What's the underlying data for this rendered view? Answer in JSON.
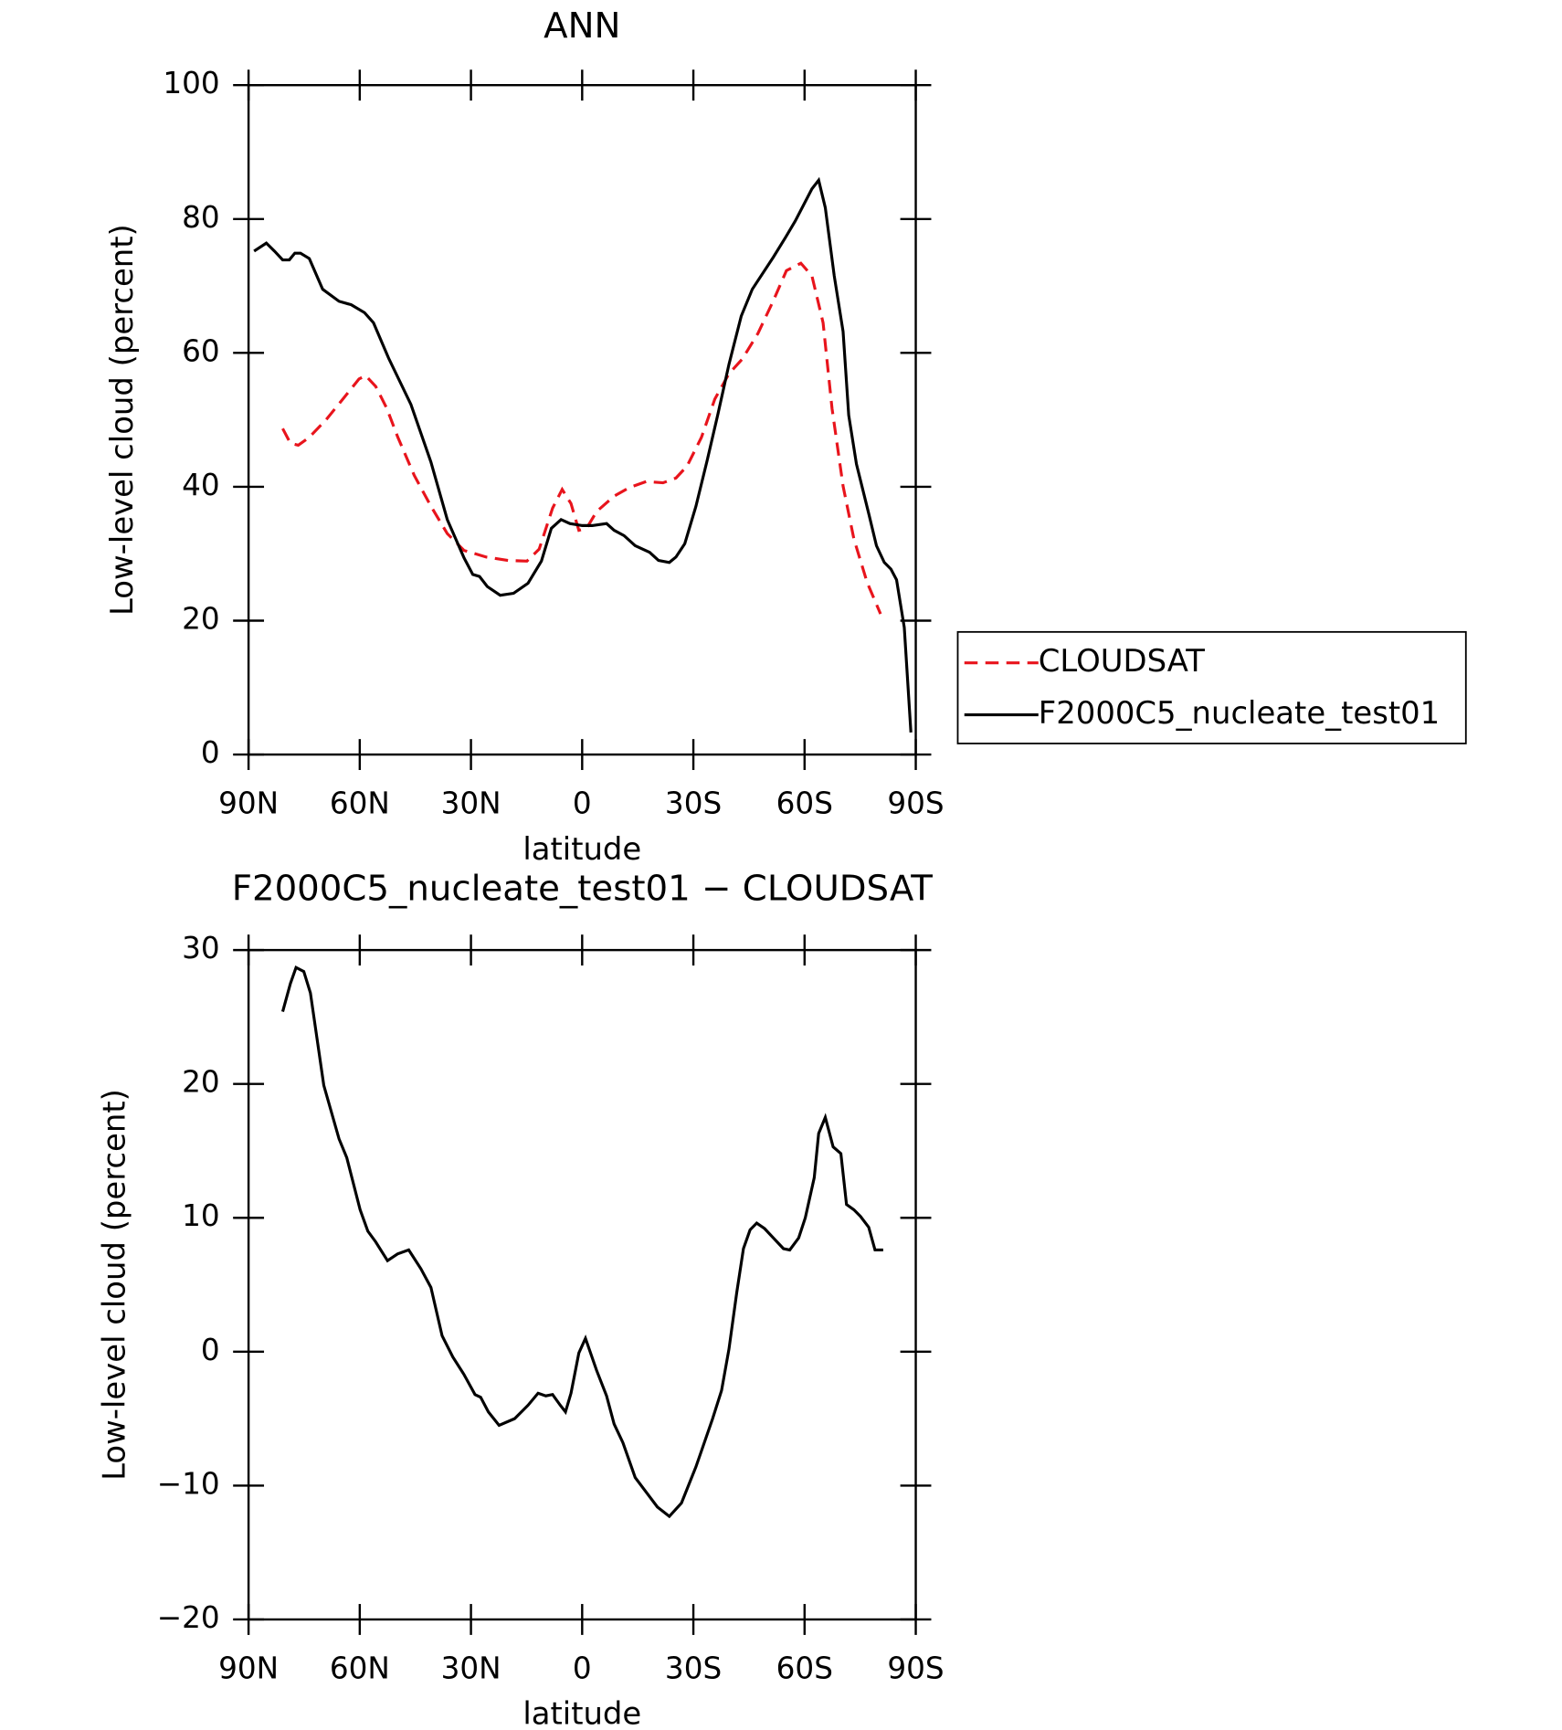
{
  "chart_data": [
    {
      "type": "line",
      "title": "ANN",
      "xlabel": "latitude",
      "ylabel": "Low-level cloud (percent)",
      "xlim": [
        90,
        -90
      ],
      "xticks": [
        {
          "value": 90,
          "label": "90N"
        },
        {
          "value": 60,
          "label": "60N"
        },
        {
          "value": 30,
          "label": "30N"
        },
        0,
        {
          "value": -30,
          "label": "30S"
        },
        {
          "value": -60,
          "label": "60S"
        },
        {
          "value": -90,
          "label": "90S"
        }
      ],
      "ylim": [
        0,
        100
      ],
      "yticks": [
        0,
        20,
        40,
        60,
        80,
        100
      ],
      "legend": "right",
      "series": [
        {
          "name": "CLOUDSAT",
          "color": "#e8141c",
          "dash": true,
          "x": [
            80.8,
            78.7,
            76.6,
            73.6,
            69.1,
            64.7,
            60.2,
            58.4,
            55.7,
            52.7,
            49.8,
            45.3,
            40.8,
            36.4,
            31.9,
            25.9,
            19.9,
            14.9,
            11.6,
            8,
            5.4,
            3,
            0.9,
            -1.2,
            -3.9,
            -8.6,
            -12.8,
            -17.3,
            -21.8,
            -25.3,
            -28.3,
            -32.2,
            -35.8,
            -39.6,
            -43.2,
            -47.4,
            -51.6,
            -55.1,
            -59,
            -62,
            -65,
            -67.4,
            -70.4,
            -73.3,
            -76.9,
            -80.5
          ],
          "values": [
            48.7,
            46.5,
            46.2,
            47.4,
            50,
            53,
            56.1,
            56.6,
            55,
            51.7,
            47.5,
            41.7,
            37.1,
            33,
            30.5,
            29.5,
            29,
            28.9,
            30.7,
            36.8,
            39.6,
            37.5,
            33.5,
            33.8,
            36.3,
            38.6,
            39.9,
            40.8,
            40.6,
            41.3,
            43.1,
            47.4,
            53.1,
            56.9,
            59.1,
            62.9,
            67.8,
            72.3,
            73.4,
            71.5,
            64.5,
            51.7,
            40.1,
            32.2,
            25.7,
            21
          ]
        },
        {
          "name": "F2000C5_nucleate_test01",
          "color": "#000000",
          "dash": false,
          "x": [
            88.5,
            85.2,
            83,
            80.8,
            79,
            77.5,
            76,
            73.6,
            70,
            65.6,
            62.3,
            58.7,
            56.3,
            52.2,
            46.2,
            40.8,
            36.4,
            31.9,
            29.5,
            27.7,
            25.6,
            22.1,
            18.5,
            14.6,
            11,
            8.3,
            5.7,
            3.3,
            0,
            -2.7,
            -6.6,
            -8.6,
            -11.3,
            -14.3,
            -18.2,
            -20.6,
            -23.5,
            -25.3,
            -27.7,
            -30.7,
            -33.7,
            -36.6,
            -39.6,
            -42.9,
            -45.9,
            -51.6,
            -54.8,
            -57.5,
            -62,
            -63.8,
            -65.6,
            -68,
            -70.4,
            -71.9,
            -74,
            -77.3,
            -79.4,
            -81.5,
            -83.3,
            -84.8,
            -86.9,
            -88.7
          ],
          "values": [
            75.2,
            76.4,
            75.2,
            73.9,
            73.9,
            74.9,
            74.9,
            74.1,
            69.5,
            67.7,
            67.2,
            66,
            64.5,
            59.2,
            52.3,
            43.7,
            35.1,
            29.4,
            26.9,
            26.6,
            25.1,
            23.8,
            24.1,
            25.6,
            28.9,
            33.8,
            35.1,
            34.5,
            34.2,
            34.2,
            34.5,
            33.5,
            32.7,
            31.2,
            30.2,
            29,
            28.7,
            29.5,
            31.5,
            37.1,
            43.9,
            50.8,
            58.3,
            65.5,
            69.5,
            74.3,
            77.2,
            79.7,
            84.5,
            85.8,
            81.7,
            71.5,
            63.2,
            50.7,
            43.4,
            36,
            31.2,
            28.7,
            27.7,
            26.1,
            19,
            3.3
          ]
        }
      ]
    },
    {
      "type": "line",
      "title": "F2000C5_nucleate_test01 − CLOUDSAT",
      "xlabel": "latitude",
      "ylabel": "Low-level cloud (percent)",
      "xlim": [
        90,
        -90
      ],
      "xticks": [
        {
          "value": 90,
          "label": "90N"
        },
        {
          "value": 60,
          "label": "60N"
        },
        {
          "value": 30,
          "label": "30N"
        },
        0,
        {
          "value": -30,
          "label": "30S"
        },
        {
          "value": -60,
          "label": "60S"
        },
        {
          "value": -90,
          "label": "90S"
        }
      ],
      "ylim": [
        -20,
        30
      ],
      "yticks": [
        {
          "value": -20,
          "label": "−20"
        },
        {
          "value": -10,
          "label": "−10"
        },
        0,
        10,
        20,
        30
      ],
      "series": [
        {
          "color": "#000000",
          "dash": false,
          "x": [
            80.8,
            78.7,
            77.2,
            75.1,
            73.3,
            69.7,
            65.6,
            63.5,
            59.9,
            57.8,
            55.7,
            52.5,
            49.8,
            46.8,
            43.5,
            40.8,
            37.8,
            34.9,
            31.9,
            28.9,
            27.4,
            25.3,
            22.4,
            18.2,
            14.6,
            11.9,
            9.8,
            8,
            5.9,
            4.5,
            3,
            0.9,
            -0.9,
            -3.9,
            -6.6,
            -8.6,
            -11,
            -14.3,
            -17.3,
            -20.3,
            -23.5,
            -26.8,
            -30.7,
            -35.2,
            -37.6,
            -39.6,
            -41.7,
            -43.5,
            -45.3,
            -47.1,
            -49.2,
            -51.6,
            -54.3,
            -56,
            -58.4,
            -60.2,
            -62.6,
            -63.8,
            -65.6,
            -67.7,
            -69.8,
            -71.3,
            -73.3,
            -75.1,
            -77.3,
            -79,
            -81.2
          ],
          "values": [
            25.4,
            27.5,
            28.7,
            28.4,
            26.8,
            19.9,
            15.9,
            14.5,
            10.6,
            9,
            8.2,
            6.8,
            7.3,
            7.6,
            6.2,
            4.8,
            1.2,
            -0.4,
            -1.7,
            -3.2,
            -3.4,
            -4.5,
            -5.5,
            -5,
            -4,
            -3.1,
            -3.3,
            -3.2,
            -4,
            -4.5,
            -3.1,
            -0.1,
            1,
            -1.4,
            -3.3,
            -5.4,
            -6.8,
            -9.4,
            -10.5,
            -11.6,
            -12.3,
            -11.3,
            -8.6,
            -5,
            -2.9,
            0.2,
            4.4,
            7.7,
            9.1,
            9.6,
            9.2,
            8.5,
            7.7,
            7.6,
            8.5,
            10,
            13,
            16.3,
            17.5,
            15.3,
            14.8,
            11,
            10.6,
            10.1,
            9.3,
            7.6,
            7.6
          ]
        }
      ]
    }
  ]
}
